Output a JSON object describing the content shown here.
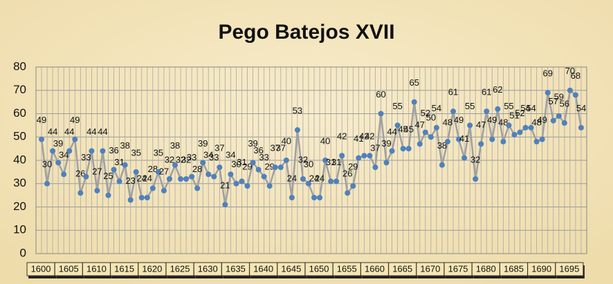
{
  "chart_data": {
    "type": "line",
    "title": "Pego Batejos XVII",
    "x": [
      1600,
      1601,
      1602,
      1603,
      1604,
      1605,
      1606,
      1607,
      1608,
      1609,
      1610,
      1611,
      1612,
      1613,
      1614,
      1615,
      1616,
      1617,
      1618,
      1619,
      1620,
      1621,
      1622,
      1623,
      1624,
      1625,
      1626,
      1627,
      1628,
      1629,
      1630,
      1631,
      1632,
      1633,
      1634,
      1635,
      1636,
      1637,
      1638,
      1639,
      1640,
      1641,
      1642,
      1643,
      1644,
      1645,
      1646,
      1647,
      1648,
      1649,
      1650,
      1651,
      1652,
      1653,
      1654,
      1655,
      1656,
      1657,
      1658,
      1659,
      1660,
      1661,
      1662,
      1663,
      1664,
      1665,
      1666,
      1667,
      1668,
      1669,
      1670,
      1671,
      1672,
      1673,
      1674,
      1675,
      1676,
      1677,
      1678,
      1679,
      1680,
      1681,
      1682,
      1683,
      1684,
      1685,
      1686,
      1687,
      1688,
      1689,
      1690,
      1691,
      1692,
      1693,
      1694,
      1695,
      1696,
      1697
    ],
    "series": [
      {
        "color": "#4f81bd",
        "values": [
          49,
          30,
          44,
          39,
          34,
          44,
          49,
          26,
          33,
          44,
          27,
          44,
          25,
          36,
          31,
          38,
          23,
          35,
          24,
          24,
          28,
          35,
          27,
          32,
          38,
          32,
          32,
          33,
          28,
          39,
          34,
          33,
          37,
          21,
          34,
          30,
          31,
          29,
          39,
          36,
          33,
          29,
          37,
          37,
          40,
          24,
          53,
          32,
          30,
          24,
          24,
          40,
          31,
          31,
          42,
          26,
          29,
          41,
          42,
          42,
          37,
          60,
          39,
          44,
          55,
          45,
          45,
          65,
          47,
          52,
          50,
          54,
          38,
          48,
          61,
          49,
          41,
          55,
          32,
          47,
          61,
          49,
          62,
          48,
          55,
          51,
          52,
          54,
          54,
          48,
          49,
          69,
          57,
          59,
          56,
          70,
          68,
          54
        ]
      }
    ],
    "xlim": [
      1599,
      1698
    ],
    "xticks": [
      1600,
      1605,
      1610,
      1615,
      1620,
      1625,
      1630,
      1635,
      1640,
      1645,
      1650,
      1655,
      1660,
      1665,
      1670,
      1675,
      1680,
      1685,
      1690,
      1695
    ],
    "ylim": [
      0,
      80
    ],
    "yticks": [
      0,
      10,
      20,
      30,
      40,
      50,
      60,
      70,
      80
    ],
    "grid": true,
    "line_color": "#a0a0a0"
  }
}
